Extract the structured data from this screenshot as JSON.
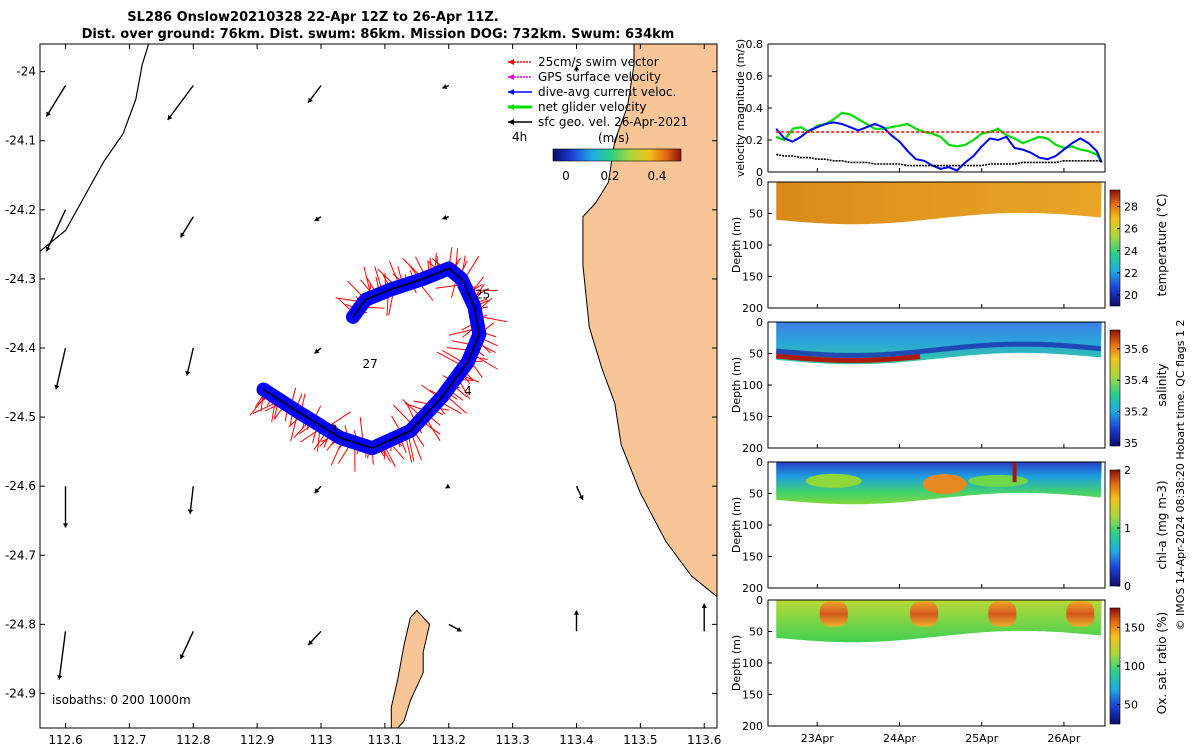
{
  "title": {
    "line1": "SL286 Onslow20210328 22-Apr 12Z to 26-Apr 11Z.",
    "line2": "Dist. over ground: 76km. Dist. swum: 86km. Mission DOG: 732km. Swum: 634km"
  },
  "colors": {
    "land": "#f7c596",
    "swim": "#ff0000",
    "gps": "#e000e0",
    "dive": "#0000ff",
    "net": "#00dd00",
    "sfc": "#000000"
  },
  "chart_data": [
    {
      "name": "map",
      "type": "scatter",
      "xlabel": "",
      "ylabel": "",
      "xlim": [
        112.56,
        113.62
      ],
      "ylim": [
        -24.95,
        -23.96
      ],
      "xticks": [
        112.6,
        112.7,
        112.8,
        112.9,
        113,
        113.1,
        113.2,
        113.3,
        113.4,
        113.5,
        113.6
      ],
      "yticks": [
        -24,
        -24.1,
        -24.2,
        -24.3,
        -24.4,
        -24.5,
        -24.6,
        -24.7,
        -24.8,
        -24.9
      ],
      "legend": {
        "items": [
          {
            "label": "25cm/s swim vector",
            "color": "#ff0000"
          },
          {
            "label": "GPS surface velocity",
            "color": "#e000e0"
          },
          {
            "label": "dive-avg current veloc.",
            "color": "#0000ff"
          },
          {
            "label": "net glider velocity",
            "color": "#00dd00"
          },
          {
            "label": "sfc geo. vel. 26-Apr-2021",
            "color": "#000000"
          }
        ],
        "scale_label": "4h",
        "colorbar_label": "(m/s)",
        "colorbar_ticks": [
          "0",
          "0.2",
          "0.4"
        ]
      },
      "annotations": [
        {
          "text": "25",
          "x": 113.253,
          "y": -24.328
        },
        {
          "text": "27",
          "x": 113.077,
          "y": -24.429
        },
        {
          "text": "4",
          "x": 113.23,
          "y": -24.468
        },
        {
          "text": "3",
          "x": 113.02,
          "y": -24.524
        }
      ],
      "isobath_label": "isobaths: 0   200   1000m",
      "track": [
        [
          112.91,
          -24.46
        ],
        [
          112.96,
          -24.49
        ],
        [
          113.03,
          -24.53
        ],
        [
          113.08,
          -24.545
        ],
        [
          113.14,
          -24.52
        ],
        [
          113.19,
          -24.47
        ],
        [
          113.23,
          -24.42
        ],
        [
          113.248,
          -24.38
        ],
        [
          113.24,
          -24.34
        ],
        [
          113.22,
          -24.3
        ],
        [
          113.2,
          -24.285
        ],
        [
          113.16,
          -24.3
        ],
        [
          113.11,
          -24.315
        ],
        [
          113.07,
          -24.33
        ],
        [
          113.05,
          -24.355
        ]
      ],
      "coast": [
        [
          113.62,
          -23.96
        ],
        [
          113.49,
          -23.96
        ],
        [
          113.49,
          -23.99
        ],
        [
          113.48,
          -24.05
        ],
        [
          113.46,
          -24.1
        ],
        [
          113.45,
          -24.16
        ],
        [
          113.43,
          -24.19
        ],
        [
          113.41,
          -24.21
        ],
        [
          113.41,
          -24.28
        ],
        [
          113.42,
          -24.37
        ],
        [
          113.44,
          -24.43
        ],
        [
          113.46,
          -24.48
        ],
        [
          113.47,
          -24.54
        ],
        [
          113.5,
          -24.61
        ],
        [
          113.54,
          -24.68
        ],
        [
          113.58,
          -24.73
        ],
        [
          113.62,
          -24.76
        ]
      ],
      "island": [
        [
          113.15,
          -24.78
        ],
        [
          113.17,
          -24.8
        ],
        [
          113.16,
          -24.84
        ],
        [
          113.16,
          -24.87
        ],
        [
          113.14,
          -24.91
        ],
        [
          113.13,
          -24.94
        ],
        [
          113.12,
          -24.95
        ],
        [
          113.11,
          -24.95
        ],
        [
          113.11,
          -24.92
        ],
        [
          113.12,
          -24.88
        ],
        [
          113.13,
          -24.83
        ],
        [
          113.14,
          -24.79
        ]
      ],
      "reef": [
        [
          112.56,
          -24.26
        ],
        [
          112.6,
          -24.23
        ],
        [
          112.63,
          -24.18
        ],
        [
          112.66,
          -24.13
        ],
        [
          112.69,
          -24.09
        ],
        [
          112.71,
          -24.04
        ],
        [
          112.72,
          -23.99
        ],
        [
          112.73,
          -23.96
        ]
      ],
      "geo_vectors": [
        [
          112.6,
          -24.02,
          -0.03,
          -0.045
        ],
        [
          112.8,
          -24.02,
          -0.04,
          -0.05
        ],
        [
          113,
          -24.02,
          -0.02,
          -0.025
        ],
        [
          113.2,
          -24.02,
          -0.01,
          -0.004
        ],
        [
          113.4,
          -24.0,
          0.0,
          0.008
        ],
        [
          112.6,
          -24.2,
          -0.03,
          -0.06
        ],
        [
          112.8,
          -24.21,
          -0.02,
          -0.03
        ],
        [
          113,
          -24.21,
          -0.01,
          -0.006
        ],
        [
          113.2,
          -24.21,
          -0.01,
          -0.003
        ],
        [
          112.6,
          -24.4,
          -0.015,
          -0.06
        ],
        [
          112.8,
          -24.4,
          -0.01,
          -0.04
        ],
        [
          113,
          -24.4,
          -0.01,
          -0.008
        ],
        [
          112.6,
          -24.6,
          0.0,
          -0.06
        ],
        [
          112.8,
          -24.6,
          -0.005,
          -0.04
        ],
        [
          113,
          -24.6,
          -0.01,
          -0.01
        ],
        [
          113.2,
          -24.6,
          -0.005,
          -0.003
        ],
        [
          113.4,
          -24.6,
          0.01,
          -0.02
        ],
        [
          112.6,
          -24.81,
          -0.01,
          -0.07
        ],
        [
          112.8,
          -24.81,
          -0.02,
          -0.04
        ],
        [
          113,
          -24.81,
          -0.02,
          -0.02
        ],
        [
          113.2,
          -24.8,
          0.02,
          -0.01
        ],
        [
          113.4,
          -24.81,
          0.0,
          0.03
        ],
        [
          113.6,
          -24.81,
          0.0,
          0.04
        ]
      ]
    },
    {
      "name": "velocity",
      "type": "line",
      "x": [
        22.5,
        22.6,
        22.7,
        22.8,
        22.9,
        23.0,
        23.1,
        23.2,
        23.3,
        23.4,
        23.5,
        23.6,
        23.7,
        23.8,
        23.9,
        24.0,
        24.1,
        24.2,
        24.3,
        24.4,
        24.5,
        24.6,
        24.7,
        24.8,
        24.9,
        25.0,
        25.1,
        25.2,
        25.3,
        25.4,
        25.5,
        25.6,
        25.7,
        25.8,
        25.9,
        26.0,
        26.1,
        26.2,
        26.3,
        26.4,
        26.46
      ],
      "series": [
        {
          "name": "net glider velocity",
          "color": "#00dd00",
          "values": [
            0.22,
            0.2,
            0.27,
            0.28,
            0.25,
            0.29,
            0.3,
            0.33,
            0.37,
            0.36,
            0.33,
            0.3,
            0.27,
            0.27,
            0.28,
            0.29,
            0.3,
            0.27,
            0.25,
            0.24,
            0.22,
            0.17,
            0.16,
            0.17,
            0.2,
            0.24,
            0.25,
            0.27,
            0.23,
            0.21,
            0.18,
            0.2,
            0.22,
            0.21,
            0.17,
            0.15,
            0.16,
            0.14,
            0.13,
            0.11,
            0.06
          ]
        },
        {
          "name": "dive-avg current veloc.",
          "color": "#0000ff",
          "values": [
            0.27,
            0.21,
            0.19,
            0.22,
            0.26,
            0.28,
            0.3,
            0.31,
            0.3,
            0.28,
            0.26,
            0.28,
            0.3,
            0.28,
            0.23,
            0.19,
            0.13,
            0.08,
            0.07,
            0.04,
            0.02,
            0.03,
            0.01,
            0.06,
            0.1,
            0.16,
            0.21,
            0.2,
            0.22,
            0.15,
            0.14,
            0.12,
            0.09,
            0.08,
            0.1,
            0.14,
            0.18,
            0.21,
            0.18,
            0.13,
            0.06
          ]
        },
        {
          "name": "25cm/s swim vector",
          "color": "#ff0000",
          "values": [
            0.25,
            0.25,
            0.25,
            0.25,
            0.25,
            0.25,
            0.25,
            0.25,
            0.25,
            0.25,
            0.25,
            0.25,
            0.25,
            0.25,
            0.25,
            0.25,
            0.25,
            0.25,
            0.25,
            0.25,
            0.25,
            0.25,
            0.25,
            0.25,
            0.25,
            0.25,
            0.25,
            0.25,
            0.25,
            0.25,
            0.25,
            0.25,
            0.25,
            0.25,
            0.25,
            0.25,
            0.25,
            0.25,
            0.25,
            0.25,
            0.25
          ]
        },
        {
          "name": "sfc geo. vel.",
          "color": "#000000",
          "values": [
            0.11,
            0.1,
            0.1,
            0.09,
            0.09,
            0.08,
            0.08,
            0.07,
            0.07,
            0.06,
            0.06,
            0.06,
            0.05,
            0.05,
            0.05,
            0.05,
            0.04,
            0.04,
            0.04,
            0.04,
            0.04,
            0.04,
            0.04,
            0.04,
            0.04,
            0.04,
            0.05,
            0.05,
            0.05,
            0.05,
            0.06,
            0.06,
            0.06,
            0.06,
            0.06,
            0.07,
            0.07,
            0.07,
            0.07,
            0.07,
            0.07
          ]
        }
      ],
      "ylabel": "velocity magnitude (m/s)",
      "xlim": [
        22.4,
        26.5
      ],
      "ylim": [
        0,
        0.8
      ],
      "yticks": [
        0,
        0.2,
        0.4,
        0.6,
        0.8
      ]
    },
    {
      "name": "temperature",
      "type": "heatmap",
      "ylabel": "Depth (m)",
      "clabel": "temperature (°C)",
      "ylim": [
        200,
        0
      ],
      "yticks": [
        0,
        50,
        100,
        150,
        200
      ],
      "clim": [
        19,
        29.5
      ],
      "cticks": [
        "20",
        "22",
        "24",
        "26",
        "28"
      ]
    },
    {
      "name": "salinity",
      "type": "heatmap",
      "ylabel": "Depth (m)",
      "clabel": "salinity",
      "ylim": [
        200,
        0
      ],
      "yticks": [
        0,
        50,
        100,
        150,
        200
      ],
      "clim": [
        34.98,
        35.72
      ],
      "cticks": [
        "35",
        "35.2",
        "35.4",
        "35.6"
      ]
    },
    {
      "name": "chl-a",
      "type": "heatmap",
      "ylabel": "Depth (m)",
      "clabel": "chl-a (mg m-3)",
      "ylim": [
        200,
        0
      ],
      "yticks": [
        0,
        50,
        100,
        150,
        200
      ],
      "clim": [
        0,
        2
      ],
      "cticks": [
        "0",
        "1",
        "2"
      ]
    },
    {
      "name": "oxygen",
      "type": "heatmap",
      "ylabel": "Depth (m)",
      "clabel": "Ox. sat. ratio (%)",
      "ylim": [
        200,
        0
      ],
      "yticks": [
        0,
        50,
        100,
        150,
        200
      ],
      "clim": [
        25,
        175
      ],
      "cticks": [
        "50",
        "100",
        "150"
      ],
      "xticks": [
        23,
        24,
        25,
        26
      ],
      "xticklabels": [
        "23Apr",
        "24Apr",
        "25Apr",
        "26Apr"
      ]
    }
  ],
  "credit": "© IMOS 14-Apr-2024 08:38:20 Hobart time. QC flags 1  2"
}
